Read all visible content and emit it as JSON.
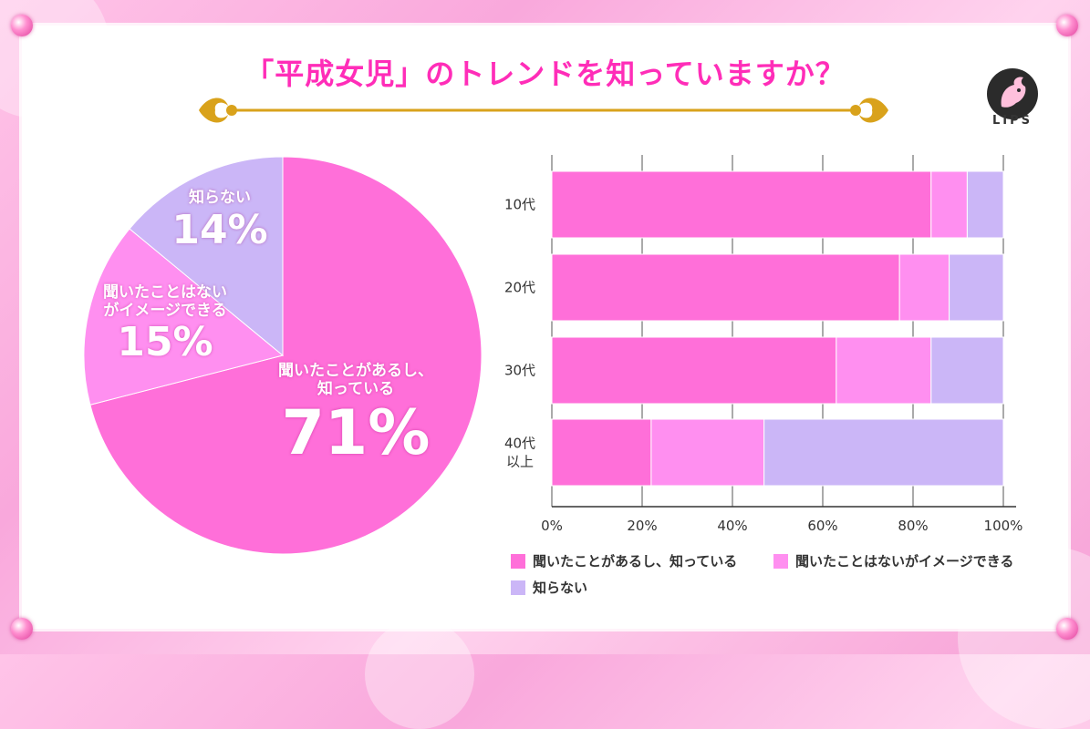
{
  "title": "「平成女児」のトレンドを知っていますか？",
  "logo": {
    "text": "LIPS"
  },
  "colors": {
    "know": "#ff6fd9",
    "heard": "#ff8ff0",
    "unknown": "#cbb6f7",
    "title": "#ff2db8",
    "gold": "#d9a21b"
  },
  "pie": {
    "slices": [
      {
        "line1": "聞いたことがあるし、",
        "line2": "知っている",
        "percent_label": "71%",
        "value": 71,
        "color": "#ff6fd9"
      },
      {
        "line1": "聞いたことはない",
        "line2": "がイメージできる",
        "percent_label": "15%",
        "value": 15,
        "color": "#ff8ff0"
      },
      {
        "line1": "知らない",
        "line2": "",
        "percent_label": "14%",
        "value": 14,
        "color": "#cbb6f7"
      }
    ]
  },
  "chart_data": {
    "type": "bar",
    "orientation": "horizontal",
    "stacked": true,
    "categories": [
      "10代",
      "20代",
      "30代",
      "40代\n以上"
    ],
    "series": [
      {
        "name": "聞いたことがあるし、知っている",
        "values": [
          84,
          77,
          63,
          22
        ],
        "color": "#ff6fd9"
      },
      {
        "name": "聞いたことはないがイメージできる",
        "values": [
          8,
          11,
          21,
          25
        ],
        "color": "#ff8ff0"
      },
      {
        "name": "知らない",
        "values": [
          8,
          12,
          16,
          53
        ],
        "color": "#cbb6f7"
      }
    ],
    "xticks": [
      "0%",
      "20%",
      "40%",
      "60%",
      "80%",
      "100%"
    ],
    "xlim": [
      0,
      100
    ],
    "grid": true,
    "legend_placement": "bottom"
  }
}
